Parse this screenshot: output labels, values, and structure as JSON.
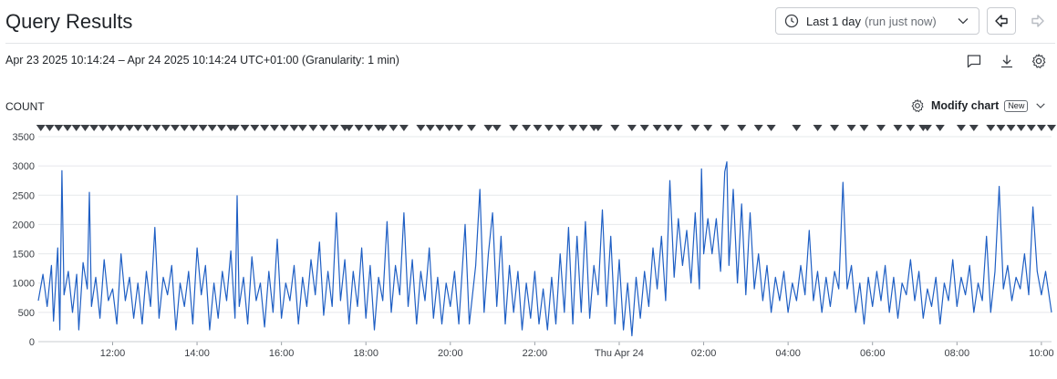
{
  "header": {
    "title": "Query Results",
    "time_range_label": "Last 1 day",
    "time_range_note": "(run just now)"
  },
  "range_text": "Apr 23 2025 10:14:24 – Apr 24 2025 10:14:24 UTC+01:00 (Granularity: 1 min)",
  "chart_header": {
    "metric_label": "COUNT",
    "modify_label": "Modify chart",
    "new_badge": "New"
  },
  "icons": [
    "clock-icon",
    "chevron-down-icon",
    "back-arrow-icon",
    "forward-arrow-icon",
    "comment-icon",
    "download-icon",
    "settings-gear-icon"
  ],
  "colors": {
    "line": "#1f5fc4",
    "marker": "#3b3f45",
    "grid": "#e6e8eb"
  },
  "chart_data": {
    "type": "line",
    "title": "",
    "ylabel": "COUNT",
    "ylim": [
      0,
      3500
    ],
    "yticks": [
      0,
      500,
      1000,
      1500,
      2000,
      2500,
      3000,
      3500
    ],
    "x_start_hour": 10.24,
    "x_end_hour": 34.24,
    "xtick_labels": [
      {
        "hour": 12,
        "label": "12:00"
      },
      {
        "hour": 14,
        "label": "14:00"
      },
      {
        "hour": 16,
        "label": "16:00"
      },
      {
        "hour": 18,
        "label": "18:00"
      },
      {
        "hour": 20,
        "label": "20:00"
      },
      {
        "hour": 22,
        "label": "22:00"
      },
      {
        "hour": 24,
        "label": "Thu Apr 24"
      },
      {
        "hour": 26,
        "label": "02:00"
      },
      {
        "hour": 28,
        "label": "04:00"
      },
      {
        "hour": 30,
        "label": "06:00"
      },
      {
        "hour": 32,
        "label": "08:00"
      },
      {
        "hour": 34,
        "label": "10:00"
      }
    ],
    "grid": true,
    "series": [
      {
        "values_per_hour_segment": "approx",
        "points": [
          [
            10.24,
            700
          ],
          [
            10.35,
            1150
          ],
          [
            10.45,
            600
          ],
          [
            10.55,
            1300
          ],
          [
            10.6,
            350
          ],
          [
            10.7,
            1600
          ],
          [
            10.75,
            200
          ],
          [
            10.8,
            2920
          ],
          [
            10.85,
            800
          ],
          [
            10.95,
            1200
          ],
          [
            11.05,
            500
          ],
          [
            11.15,
            1150
          ],
          [
            11.2,
            200
          ],
          [
            11.3,
            1350
          ],
          [
            11.4,
            900
          ],
          [
            11.45,
            2550
          ],
          [
            11.5,
            600
          ],
          [
            11.6,
            1100
          ],
          [
            11.7,
            400
          ],
          [
            11.8,
            1400
          ],
          [
            11.9,
            700
          ],
          [
            12.0,
            900
          ],
          [
            12.1,
            300
          ],
          [
            12.2,
            1500
          ],
          [
            12.3,
            700
          ],
          [
            12.4,
            1100
          ],
          [
            12.5,
            400
          ],
          [
            12.6,
            1000
          ],
          [
            12.7,
            300
          ],
          [
            12.8,
            1200
          ],
          [
            12.9,
            600
          ],
          [
            13.0,
            1950
          ],
          [
            13.1,
            400
          ],
          [
            13.2,
            1100
          ],
          [
            13.3,
            800
          ],
          [
            13.4,
            1300
          ],
          [
            13.5,
            200
          ],
          [
            13.6,
            1000
          ],
          [
            13.7,
            600
          ],
          [
            13.8,
            1200
          ],
          [
            13.9,
            300
          ],
          [
            14.0,
            1600
          ],
          [
            14.1,
            800
          ],
          [
            14.2,
            1300
          ],
          [
            14.3,
            200
          ],
          [
            14.4,
            1000
          ],
          [
            14.5,
            400
          ],
          [
            14.6,
            1200
          ],
          [
            14.7,
            700
          ],
          [
            14.8,
            1550
          ],
          [
            14.9,
            400
          ],
          [
            14.95,
            2490
          ],
          [
            15.0,
            600
          ],
          [
            15.1,
            1100
          ],
          [
            15.2,
            300
          ],
          [
            15.3,
            1450
          ],
          [
            15.4,
            700
          ],
          [
            15.5,
            1000
          ],
          [
            15.6,
            250
          ],
          [
            15.7,
            1200
          ],
          [
            15.8,
            500
          ],
          [
            15.9,
            1750
          ],
          [
            16.0,
            400
          ],
          [
            16.1,
            1000
          ],
          [
            16.2,
            700
          ],
          [
            16.3,
            1300
          ],
          [
            16.4,
            300
          ],
          [
            16.5,
            1100
          ],
          [
            16.6,
            600
          ],
          [
            16.7,
            1400
          ],
          [
            16.8,
            800
          ],
          [
            16.9,
            1700
          ],
          [
            17.0,
            450
          ],
          [
            17.1,
            1200
          ],
          [
            17.2,
            600
          ],
          [
            17.3,
            2200
          ],
          [
            17.4,
            700
          ],
          [
            17.5,
            1400
          ],
          [
            17.6,
            300
          ],
          [
            17.7,
            1200
          ],
          [
            17.8,
            600
          ],
          [
            17.9,
            1600
          ],
          [
            18.0,
            400
          ],
          [
            18.1,
            1300
          ],
          [
            18.2,
            200
          ],
          [
            18.3,
            1100
          ],
          [
            18.4,
            700
          ],
          [
            18.5,
            2050
          ],
          [
            18.6,
            500
          ],
          [
            18.7,
            1300
          ],
          [
            18.8,
            800
          ],
          [
            18.9,
            2200
          ],
          [
            19.0,
            600
          ],
          [
            19.1,
            1400
          ],
          [
            19.2,
            300
          ],
          [
            19.3,
            1200
          ],
          [
            19.4,
            700
          ],
          [
            19.5,
            1600
          ],
          [
            19.6,
            400
          ],
          [
            19.7,
            1100
          ],
          [
            19.8,
            300
          ],
          [
            19.9,
            1000
          ],
          [
            20.0,
            600
          ],
          [
            20.1,
            1200
          ],
          [
            20.2,
            300
          ],
          [
            20.35,
            2000
          ],
          [
            20.45,
            300
          ],
          [
            20.6,
            1300
          ],
          [
            20.7,
            2600
          ],
          [
            20.8,
            500
          ],
          [
            20.9,
            1500
          ],
          [
            21.0,
            2200
          ],
          [
            21.1,
            600
          ],
          [
            21.2,
            1800
          ],
          [
            21.3,
            300
          ],
          [
            21.4,
            1300
          ],
          [
            21.5,
            500
          ],
          [
            21.6,
            1200
          ],
          [
            21.7,
            200
          ],
          [
            21.8,
            1000
          ],
          [
            21.9,
            400
          ],
          [
            22.0,
            1200
          ],
          [
            22.1,
            300
          ],
          [
            22.2,
            900
          ],
          [
            22.3,
            200
          ],
          [
            22.4,
            1100
          ],
          [
            22.5,
            300
          ],
          [
            22.6,
            1500
          ],
          [
            22.7,
            500
          ],
          [
            22.8,
            1950
          ],
          [
            22.9,
            300
          ],
          [
            23.0,
            1800
          ],
          [
            23.1,
            500
          ],
          [
            23.2,
            2050
          ],
          [
            23.3,
            400
          ],
          [
            23.4,
            1300
          ],
          [
            23.5,
            800
          ],
          [
            23.6,
            2250
          ],
          [
            23.7,
            600
          ],
          [
            23.8,
            1800
          ],
          [
            23.9,
            300
          ],
          [
            24.0,
            1400
          ],
          [
            24.1,
            200
          ],
          [
            24.2,
            1000
          ],
          [
            24.3,
            100
          ],
          [
            24.4,
            1100
          ],
          [
            24.5,
            400
          ],
          [
            24.6,
            1200
          ],
          [
            24.7,
            600
          ],
          [
            24.8,
            1600
          ],
          [
            24.9,
            900
          ],
          [
            25.0,
            1800
          ],
          [
            25.1,
            700
          ],
          [
            25.2,
            2750
          ],
          [
            25.3,
            1100
          ],
          [
            25.4,
            2100
          ],
          [
            25.5,
            1300
          ],
          [
            25.6,
            1900
          ],
          [
            25.7,
            1000
          ],
          [
            25.8,
            2200
          ],
          [
            25.9,
            900
          ],
          [
            25.95,
            2950
          ],
          [
            26.0,
            1500
          ],
          [
            26.1,
            2100
          ],
          [
            26.2,
            1500
          ],
          [
            26.3,
            2100
          ],
          [
            26.4,
            1200
          ],
          [
            26.5,
            2900
          ],
          [
            26.55,
            3070
          ],
          [
            26.6,
            1300
          ],
          [
            26.7,
            2600
          ],
          [
            26.8,
            1000
          ],
          [
            26.9,
            2350
          ],
          [
            27.0,
            800
          ],
          [
            27.1,
            2200
          ],
          [
            27.2,
            900
          ],
          [
            27.3,
            1500
          ],
          [
            27.4,
            700
          ],
          [
            27.5,
            1300
          ],
          [
            27.6,
            500
          ],
          [
            27.7,
            1100
          ],
          [
            27.8,
            700
          ],
          [
            27.9,
            1200
          ],
          [
            28.0,
            500
          ],
          [
            28.1,
            1000
          ],
          [
            28.2,
            700
          ],
          [
            28.3,
            1300
          ],
          [
            28.4,
            800
          ],
          [
            28.5,
            1900
          ],
          [
            28.6,
            700
          ],
          [
            28.7,
            1200
          ],
          [
            28.8,
            500
          ],
          [
            28.9,
            1100
          ],
          [
            29.0,
            600
          ],
          [
            29.1,
            1200
          ],
          [
            29.2,
            900
          ],
          [
            29.3,
            2720
          ],
          [
            29.4,
            900
          ],
          [
            29.5,
            1300
          ],
          [
            29.6,
            500
          ],
          [
            29.7,
            1000
          ],
          [
            29.8,
            300
          ],
          [
            29.9,
            1100
          ],
          [
            30.0,
            600
          ],
          [
            30.1,
            1200
          ],
          [
            30.2,
            700
          ],
          [
            30.3,
            1300
          ],
          [
            30.4,
            500
          ],
          [
            30.5,
            1100
          ],
          [
            30.6,
            400
          ],
          [
            30.7,
            1000
          ],
          [
            30.8,
            800
          ],
          [
            30.9,
            1400
          ],
          [
            31.0,
            700
          ],
          [
            31.1,
            1200
          ],
          [
            31.2,
            400
          ],
          [
            31.3,
            900
          ],
          [
            31.4,
            600
          ],
          [
            31.5,
            1100
          ],
          [
            31.6,
            300
          ],
          [
            31.7,
            1000
          ],
          [
            31.8,
            700
          ],
          [
            31.9,
            1400
          ],
          [
            32.0,
            600
          ],
          [
            32.1,
            1100
          ],
          [
            32.2,
            800
          ],
          [
            32.3,
            1300
          ],
          [
            32.4,
            500
          ],
          [
            32.5,
            1000
          ],
          [
            32.6,
            700
          ],
          [
            32.7,
            1800
          ],
          [
            32.8,
            500
          ],
          [
            32.9,
            1200
          ],
          [
            33.0,
            2650
          ],
          [
            33.1,
            900
          ],
          [
            33.2,
            1300
          ],
          [
            33.3,
            700
          ],
          [
            33.4,
            1100
          ],
          [
            33.5,
            900
          ],
          [
            33.6,
            1500
          ],
          [
            33.7,
            800
          ],
          [
            33.8,
            2300
          ],
          [
            33.9,
            1200
          ],
          [
            34.0,
            800
          ],
          [
            34.1,
            1200
          ],
          [
            34.24,
            500
          ]
        ]
      }
    ],
    "annotation_markers_hour": [
      [
        10.3,
        12.4
      ],
      [
        12.6,
        14.8
      ],
      [
        14.9,
        16.3
      ],
      [
        16.5,
        17.5
      ],
      [
        17.6,
        18.3
      ],
      [
        18.4,
        18.9
      ],
      [
        19.3,
        20.2
      ],
      [
        20.5,
        20.9
      ],
      [
        21.1,
        21.5
      ],
      [
        21.8,
        22.6
      ],
      [
        22.9,
        23.4
      ],
      [
        23.5,
        23.9
      ],
      [
        24.3,
        24.6
      ],
      [
        24.9,
        25.4
      ],
      [
        25.8,
        26.1
      ],
      [
        26.5,
        26.9
      ],
      [
        27.3,
        27.6
      ],
      [
        28.1,
        28.3
      ],
      [
        28.7,
        29.1
      ],
      [
        29.5,
        29.8
      ],
      [
        30.2,
        30.6
      ],
      [
        30.9,
        31.2
      ],
      [
        31.3,
        31.6
      ],
      [
        32.1,
        32.4
      ],
      [
        32.8,
        34.24
      ]
    ]
  }
}
